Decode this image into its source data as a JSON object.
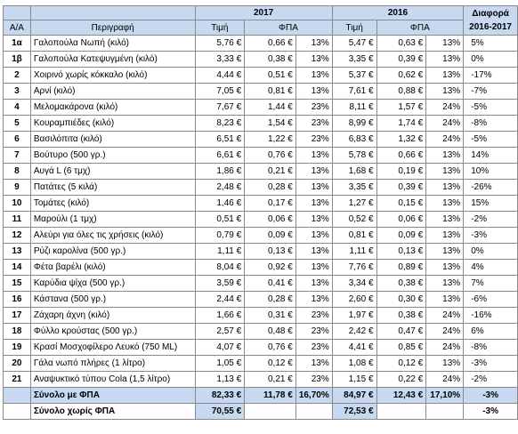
{
  "header": {
    "col_aa": "Α/Α",
    "col_desc": "Περιγραφή",
    "year_a": "2017",
    "year_b": "2016",
    "col_diff": "Διαφορά 2016-2017",
    "col_price": "Τιμή",
    "col_vat": "ΦΠΑ"
  },
  "rows": [
    {
      "id": "1α",
      "desc": "Γαλοπούλα Νωπή (κιλό)",
      "p17": "5,76 €",
      "v17": "0,66 €",
      "r17": "13%",
      "p16": "5,47 €",
      "v16": "0,63 €",
      "r16": "13%",
      "diff": "5%"
    },
    {
      "id": "1β",
      "desc": "Γαλοπούλα Κατεψυγμένη (κιλό)",
      "p17": "3,33 €",
      "v17": "0,38 €",
      "r17": "13%",
      "p16": "3,35 €",
      "v16": "0,39 €",
      "r16": "13%",
      "diff": "0%"
    },
    {
      "id": "2",
      "desc": "Χοιρινό χωρίς κόκκαλο (κιλό)",
      "p17": "4,44 €",
      "v17": "0,51 €",
      "r17": "13%",
      "p16": "5,37 €",
      "v16": "0,62 €",
      "r16": "13%",
      "diff": "-17%"
    },
    {
      "id": "3",
      "desc": "Αρνί (κιλό)",
      "p17": "7,05 €",
      "v17": "0,81 €",
      "r17": "13%",
      "p16": "7,61 €",
      "v16": "0,88 €",
      "r16": "13%",
      "diff": "-7%"
    },
    {
      "id": "4",
      "desc": "Μελομακάρονα (κιλό)",
      "p17": "7,67 €",
      "v17": "1,44 €",
      "r17": "23%",
      "p16": "8,11 €",
      "v16": "1,57 €",
      "r16": "24%",
      "diff": "-5%"
    },
    {
      "id": "5",
      "desc": "Κουραμπιέδες (κιλό)",
      "p17": "8,23 €",
      "v17": "1,54 €",
      "r17": "23%",
      "p16": "8,99 €",
      "v16": "1,74 €",
      "r16": "24%",
      "diff": "-8%"
    },
    {
      "id": "6",
      "desc": "Βασιλόπιτα (κιλό)",
      "p17": "6,51 €",
      "v17": "1,22 €",
      "r17": "23%",
      "p16": "6,83 €",
      "v16": "1,32 €",
      "r16": "24%",
      "diff": "-5%"
    },
    {
      "id": "7",
      "desc": "Βούτυρο (500 γρ.)",
      "p17": "6,61 €",
      "v17": "0,76 €",
      "r17": "13%",
      "p16": "5,78 €",
      "v16": "0,66 €",
      "r16": "13%",
      "diff": "14%"
    },
    {
      "id": "8",
      "desc": "Αυγά L (6 τμχ)",
      "p17": "1,86 €",
      "v17": "0,21 €",
      "r17": "13%",
      "p16": "1,68 €",
      "v16": "0,19 €",
      "r16": "13%",
      "diff": "10%"
    },
    {
      "id": "9",
      "desc": "Πατάτες (5 κιλά)",
      "p17": "2,48 €",
      "v17": "0,28 €",
      "r17": "13%",
      "p16": "3,35 €",
      "v16": "0,39 €",
      "r16": "13%",
      "diff": "-26%"
    },
    {
      "id": "10",
      "desc": "Τομάτες (κιλό)",
      "p17": "1,46 €",
      "v17": "0,17 €",
      "r17": "13%",
      "p16": "1,27 €",
      "v16": "0,15 €",
      "r16": "13%",
      "diff": "15%"
    },
    {
      "id": "11",
      "desc": "Μαρούλι (1 τμχ)",
      "p17": "0,51 €",
      "v17": "0,06 €",
      "r17": "13%",
      "p16": "0,52 €",
      "v16": "0,06 €",
      "r16": "13%",
      "diff": "-2%"
    },
    {
      "id": "12",
      "desc": "Αλεύρι για όλες τις χρήσεις (κιλό)",
      "p17": "0,79 €",
      "v17": "0,09 €",
      "r17": "13%",
      "p16": "0,81 €",
      "v16": "0,09 €",
      "r16": "13%",
      "diff": "-3%"
    },
    {
      "id": "13",
      "desc": "Ρύζι καρολίνα (500 γρ.)",
      "p17": "1,11 €",
      "v17": "0,13 €",
      "r17": "13%",
      "p16": "1,11 €",
      "v16": "0,13 €",
      "r16": "13%",
      "diff": "0%"
    },
    {
      "id": "14",
      "desc": "Φέτα βαρέλι (κιλό)",
      "p17": "8,04 €",
      "v17": "0,92 €",
      "r17": "13%",
      "p16": "7,76 €",
      "v16": "0,89 €",
      "r16": "13%",
      "diff": "4%"
    },
    {
      "id": "15",
      "desc": "Καρύδια ψίχα (500 γρ.)",
      "p17": "3,59 €",
      "v17": "0,41 €",
      "r17": "13%",
      "p16": "3,34 €",
      "v16": "0,38 €",
      "r16": "13%",
      "diff": "7%"
    },
    {
      "id": "16",
      "desc": "Κάστανα (500 γρ.)",
      "p17": "2,44 €",
      "v17": "0,28 €",
      "r17": "13%",
      "p16": "2,60 €",
      "v16": "0,30 €",
      "r16": "13%",
      "diff": "-6%"
    },
    {
      "id": "17",
      "desc": "Ζάχαρη άχνη (κιλό)",
      "p17": "1,66 €",
      "v17": "0,31 €",
      "r17": "23%",
      "p16": "1,97 €",
      "v16": "0,38 €",
      "r16": "24%",
      "diff": "-16%"
    },
    {
      "id": "18",
      "desc": "Φύλλο κρούστας (500 γρ.)",
      "p17": "2,57 €",
      "v17": "0,48 €",
      "r17": "23%",
      "p16": "2,42 €",
      "v16": "0,47 €",
      "r16": "24%",
      "diff": "6%"
    },
    {
      "id": "19",
      "desc": "Κρασί Μοσχοφίλερο Λευκό (750 ML)",
      "p17": "4,07 €",
      "v17": "0,76 €",
      "r17": "23%",
      "p16": "4,41 €",
      "v16": "0,85 €",
      "r16": "24%",
      "diff": "-8%"
    },
    {
      "id": "20",
      "desc": "Γάλα νωπό πλήρες (1 λίτρο)",
      "p17": "1,05 €",
      "v17": "0,12 €",
      "r17": "13%",
      "p16": "1,08 €",
      "v16": "0,12 €",
      "r16": "13%",
      "diff": "-3%"
    },
    {
      "id": "21",
      "desc": "Αναψυκτικό τύπου Cola (1,5 λίτρο)",
      "p17": "1,13 €",
      "v17": "0,21 €",
      "r17": "23%",
      "p16": "1,15 €",
      "v16": "0,22 €",
      "r16": "24%",
      "diff": "-2%"
    }
  ],
  "total_with_vat": {
    "label": "Σύνολο με ΦΠΑ",
    "p17": "82,33 €",
    "v17": "11,78 €",
    "r17": "16,70%",
    "p16": "84,97 €",
    "v16": "12,43 €",
    "r16": "17,10%",
    "diff": "-3%"
  },
  "total_without_vat": {
    "label": "Σύνολο χωρίς ΦΠΑ",
    "p17": "70,55 €",
    "p16": "72,53 €",
    "diff": "-3%"
  }
}
